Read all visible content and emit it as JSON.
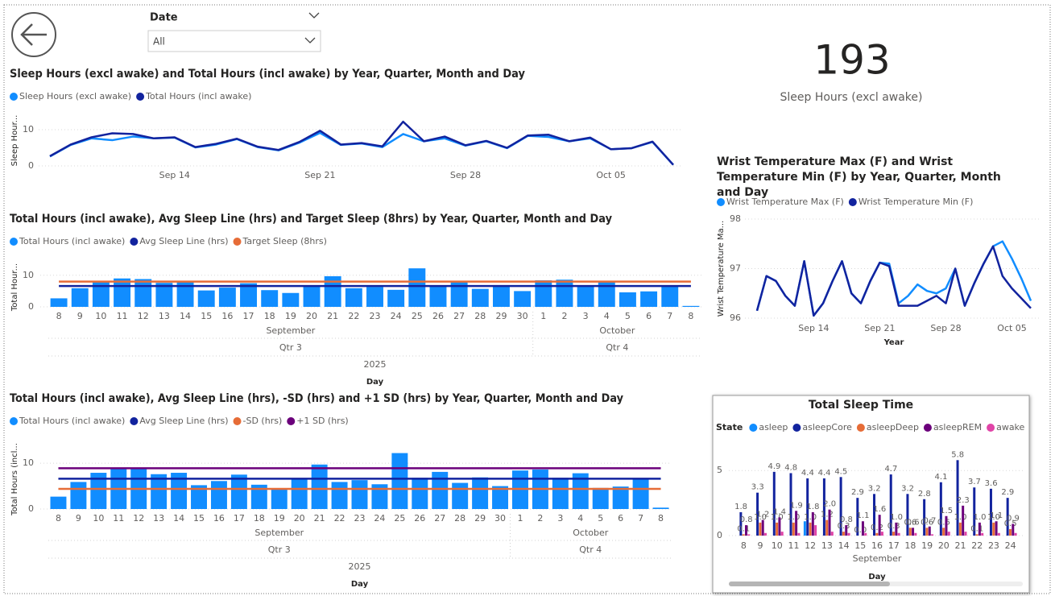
{
  "slicer": {
    "label": "Date",
    "value": "All"
  },
  "card": {
    "value": 193,
    "label": "Sleep Hours (excl awake)"
  },
  "chart_data": [
    {
      "type": "line",
      "title": "Sleep Hours (excl awake) and Total Hours (incl awake) by Year, Quarter, Month and Day",
      "y_label": "Sleep Hour...",
      "x": [
        "Sep 08",
        "Sep 09",
        "Sep 10",
        "Sep 11",
        "Sep 12",
        "Sep 13",
        "Sep 14",
        "Sep 15",
        "Sep 16",
        "Sep 17",
        "Sep 18",
        "Sep 19",
        "Sep 20",
        "Sep 21",
        "Sep 22",
        "Sep 23",
        "Sep 24",
        "Sep 25",
        "Sep 26",
        "Sep 27",
        "Sep 28",
        "Sep 29",
        "Sep 30",
        "Oct 01",
        "Oct 02",
        "Oct 03",
        "Oct 04",
        "Oct 05",
        "Oct 06",
        "Oct 07",
        "Oct 08"
      ],
      "series": [
        {
          "name": "Sleep Hours (excl awake)",
          "color": "#118DFF",
          "values": [
            2.6,
            5.8,
            7.6,
            7.1,
            8.1,
            7.6,
            7.8,
            5.1,
            5.9,
            7.4,
            5.2,
            4.3,
            6.4,
            9.1,
            5.8,
            6.2,
            5.2,
            8.8,
            6.8,
            7.6,
            5.6,
            6.8,
            4.9,
            8.3,
            8.0,
            6.8,
            7.6,
            4.6,
            4.9,
            6.6,
            0.3
          ]
        },
        {
          "name": "Total Hours (incl awake)",
          "color": "#12239E",
          "values": [
            2.7,
            5.9,
            7.9,
            9.0,
            8.8,
            7.6,
            7.9,
            5.2,
            6.1,
            7.5,
            5.3,
            4.4,
            6.6,
            9.7,
            5.9,
            6.3,
            5.4,
            12.2,
            6.8,
            8.1,
            5.7,
            6.9,
            5.0,
            8.4,
            8.6,
            6.8,
            7.8,
            4.6,
            4.9,
            6.7,
            0.3
          ]
        }
      ],
      "xticks": [
        "Sep 14",
        "Sep 21",
        "Sep 28",
        "Oct 05"
      ],
      "ylim": [
        0,
        14
      ],
      "yticks": [
        0,
        10
      ],
      "grid": true
    },
    {
      "type": "combo",
      "title": "Total Hours (incl awake), Avg Sleep Line (hrs) and Target Sleep (8hrs) by Year, Quarter, Month and Day",
      "y_label": "Total Hour...",
      "x_label": "Day",
      "categories": [
        "8",
        "9",
        "10",
        "11",
        "12",
        "13",
        "14",
        "15",
        "16",
        "17",
        "18",
        "19",
        "20",
        "21",
        "22",
        "23",
        "24",
        "25",
        "26",
        "27",
        "28",
        "29",
        "30",
        "1",
        "2",
        "3",
        "4",
        "5",
        "6",
        "7",
        "8"
      ],
      "months": [
        "September",
        "October"
      ],
      "quarters": [
        "Qtr 3",
        "Qtr 4"
      ],
      "year": "2025",
      "series": [
        {
          "name": "Total Hours (incl awake)",
          "color": "#118DFF",
          "kind": "bar",
          "values": [
            2.7,
            5.9,
            7.9,
            9.0,
            8.8,
            7.6,
            7.9,
            5.2,
            6.1,
            7.5,
            5.3,
            4.4,
            6.6,
            9.7,
            5.9,
            6.3,
            5.4,
            12.2,
            6.8,
            8.1,
            5.7,
            6.9,
            5.0,
            8.4,
            8.6,
            6.8,
            7.8,
            4.6,
            4.9,
            6.7,
            0.3
          ]
        },
        {
          "name": "Avg Sleep Line (hrs)",
          "color": "#12239E",
          "kind": "line",
          "values": [
            6.6,
            6.6,
            6.6,
            6.6,
            6.6,
            6.6,
            6.6,
            6.6,
            6.6,
            6.6,
            6.6,
            6.6,
            6.6,
            6.6,
            6.6,
            6.6,
            6.6,
            6.6,
            6.6,
            6.6,
            6.6,
            6.6,
            6.6,
            6.6,
            6.6,
            6.6,
            6.6,
            6.6,
            6.6,
            6.6,
            6.6
          ]
        },
        {
          "name": "Target Sleep (8hrs)",
          "color": "#E66C37",
          "kind": "line",
          "values": [
            8,
            8,
            8,
            8,
            8,
            8,
            8,
            8,
            8,
            8,
            8,
            8,
            8,
            8,
            8,
            8,
            8,
            8,
            8,
            8,
            8,
            8,
            8,
            8,
            8,
            8,
            8,
            8,
            8,
            8,
            8
          ]
        }
      ],
      "ylim": [
        0,
        12.5
      ],
      "yticks": [
        0,
        10
      ],
      "grid": true
    },
    {
      "type": "combo",
      "title": "Total Hours (incl awake), Avg Sleep Line (hrs), -SD (hrs) and +1 SD (hrs) by Year, Quarter, Month and Day",
      "y_label": "Total Hours (incl...",
      "x_label": "Day",
      "categories": [
        "8",
        "9",
        "10",
        "11",
        "12",
        "13",
        "14",
        "15",
        "16",
        "17",
        "18",
        "19",
        "20",
        "21",
        "22",
        "23",
        "24",
        "25",
        "26",
        "27",
        "28",
        "29",
        "30",
        "1",
        "2",
        "3",
        "4",
        "5",
        "6",
        "7",
        "8"
      ],
      "months": [
        "September",
        "October"
      ],
      "quarters": [
        "Qtr 3",
        "Qtr 4"
      ],
      "year": "2025",
      "series": [
        {
          "name": "Total Hours (incl awake)",
          "color": "#118DFF",
          "kind": "bar",
          "values": [
            2.7,
            5.9,
            7.9,
            9.0,
            8.8,
            7.6,
            7.9,
            5.2,
            6.1,
            7.5,
            5.3,
            4.4,
            6.6,
            9.7,
            5.9,
            6.3,
            5.4,
            12.2,
            6.8,
            8.1,
            5.7,
            6.9,
            5.0,
            8.4,
            8.6,
            6.8,
            7.8,
            4.6,
            4.9,
            6.7,
            0.3
          ]
        },
        {
          "name": "Avg Sleep Line (hrs)",
          "color": "#12239E",
          "kind": "line",
          "values": [
            6.6,
            6.6,
            6.6,
            6.6,
            6.6,
            6.6,
            6.6,
            6.6,
            6.6,
            6.6,
            6.6,
            6.6,
            6.6,
            6.6,
            6.6,
            6.6,
            6.6,
            6.6,
            6.6,
            6.6,
            6.6,
            6.6,
            6.6,
            6.6,
            6.6,
            6.6,
            6.6,
            6.6,
            6.6,
            6.6,
            6.6
          ]
        },
        {
          "name": "-SD (hrs)",
          "color": "#E66C37",
          "kind": "line",
          "values": [
            4.4,
            4.4,
            4.4,
            4.4,
            4.4,
            4.4,
            4.4,
            4.4,
            4.4,
            4.4,
            4.4,
            4.4,
            4.4,
            4.4,
            4.4,
            4.4,
            4.4,
            4.4,
            4.4,
            4.4,
            4.4,
            4.4,
            4.4,
            4.4,
            4.4,
            4.4,
            4.4,
            4.4,
            4.4,
            4.4,
            4.4
          ]
        },
        {
          "name": "+1 SD (hrs)",
          "color": "#6B007B",
          "kind": "line",
          "values": [
            8.9,
            8.9,
            8.9,
            8.9,
            8.9,
            8.9,
            8.9,
            8.9,
            8.9,
            8.9,
            8.9,
            8.9,
            8.9,
            8.9,
            8.9,
            8.9,
            8.9,
            8.9,
            8.9,
            8.9,
            8.9,
            8.9,
            8.9,
            8.9,
            8.9,
            8.9,
            8.9,
            8.9,
            8.9,
            8.9,
            8.9
          ]
        }
      ],
      "ylim": [
        0,
        13
      ],
      "yticks": [
        0,
        10
      ],
      "grid": true
    },
    {
      "type": "line",
      "title": "Wrist Temperature Max (F) and Wrist Temperature Min (F) by Year, Quarter, Month and Day",
      "y_label": "Wrist Temperature Ma...",
      "x_label": "Year",
      "x": [
        "Sep 08",
        "Sep 09",
        "Sep 10",
        "Sep 11",
        "Sep 12",
        "Sep 13",
        "Sep 14",
        "Sep 15",
        "Sep 16",
        "Sep 17",
        "Sep 18",
        "Sep 19",
        "Sep 20",
        "Sep 21",
        "Sep 22",
        "Sep 23",
        "Sep 24",
        "Sep 25",
        "Sep 26",
        "Sep 27",
        "Sep 28",
        "Sep 29",
        "Sep 30",
        "Oct 01",
        "Oct 02",
        "Oct 03",
        "Oct 04",
        "Oct 05",
        "Oct 06",
        "Oct 07"
      ],
      "series": [
        {
          "name": "Wrist Temperature Max (F)",
          "color": "#118DFF",
          "values": [
            96.15,
            96.85,
            96.75,
            96.45,
            96.25,
            97.15,
            96.05,
            96.3,
            96.75,
            97.15,
            96.5,
            96.3,
            96.75,
            97.12,
            97.1,
            96.3,
            96.45,
            96.68,
            96.55,
            96.5,
            96.6,
            97.0,
            96.25,
            96.7,
            97.1,
            97.45,
            97.55,
            97.2,
            96.8,
            96.35
          ]
        },
        {
          "name": "Wrist Temperature Min (F)",
          "color": "#12239E",
          "values": [
            96.15,
            96.85,
            96.75,
            96.45,
            96.25,
            97.15,
            96.05,
            96.3,
            96.75,
            97.15,
            96.5,
            96.3,
            96.75,
            97.12,
            97.05,
            96.25,
            96.25,
            96.25,
            96.35,
            96.45,
            96.3,
            97.0,
            96.25,
            96.7,
            97.1,
            97.45,
            96.85,
            96.6,
            96.4,
            96.2
          ]
        }
      ],
      "xticks": [
        "Sep 14",
        "Sep 21",
        "Sep 28",
        "Oct 05"
      ],
      "ylim": [
        96,
        98
      ],
      "yticks": [
        96,
        97,
        98
      ],
      "grid": true
    },
    {
      "type": "grouped_bar",
      "title": "Total Sleep Time",
      "legend_title": "State",
      "x_label": "Day",
      "categories": [
        "8",
        "9",
        "10",
        "11",
        "12",
        "13",
        "14",
        "15",
        "16",
        "17",
        "18",
        "19",
        "20",
        "21",
        "22",
        "23",
        "24"
      ],
      "months": [
        "September"
      ],
      "series": [
        {
          "name": "asleep",
          "color": "#118DFF",
          "values": [
            0,
            0,
            0,
            0,
            1.1,
            0,
            0,
            0,
            0,
            0,
            0,
            0,
            0,
            0,
            0,
            0,
            0
          ]
        },
        {
          "name": "asleepCore",
          "color": "#12239E",
          "values": [
            1.8,
            3.3,
            4.9,
            4.8,
            4.4,
            4.4,
            4.5,
            2.9,
            3.2,
            4.7,
            3.2,
            2.8,
            4.1,
            5.8,
            3.7,
            3.6,
            2.9
          ],
          "value_labels": [
            "1.8",
            "3.3",
            "4.9",
            "4.8",
            "4.4",
            "4.4",
            "4.5",
            "2.9",
            "3.2",
            "4.7",
            "3.2",
            "2.8",
            "4.1",
            "5.8",
            "3.7",
            "3.6",
            "2.9"
          ]
        },
        {
          "name": "asleepDeep",
          "color": "#E66C37",
          "values": [
            0.1,
            1.0,
            1.0,
            1.0,
            1.0,
            1.2,
            0.3,
            0.0,
            0.2,
            0.3,
            0.6,
            0.6,
            0.6,
            1.0,
            0.1,
            1.0,
            0.5
          ],
          "value_labels": [
            "0.1",
            "1.0",
            "1.0",
            "1.0",
            "1.0",
            "1.2",
            "0.3",
            "0.0",
            "0.2",
            "0.3",
            "0.6",
            "0.6",
            "0.6",
            "1.0",
            "0.1",
            "1.0",
            "0.5"
          ]
        },
        {
          "name": "asleepREM",
          "color": "#6B007B",
          "values": [
            0.8,
            1.2,
            1.4,
            1.9,
            1.8,
            2.0,
            0.8,
            1.1,
            1.6,
            1.0,
            0.6,
            0.7,
            1.5,
            2.3,
            1.0,
            1.1,
            0.9
          ],
          "value_labels": [
            "0.8",
            "1.2",
            "1.4",
            "1.9",
            "1.8",
            "2.0",
            "0.8",
            "1.1",
            "1.6",
            "1.0",
            "0.6",
            "0.7",
            "1.5",
            "2.3",
            "1.0",
            "1.1",
            "0.9"
          ]
        },
        {
          "name": "awake",
          "color": "#E044A7",
          "values": [
            0.1,
            0.2,
            0.3,
            0.2,
            0.8,
            0.3,
            0.2,
            0.2,
            0.3,
            0.2,
            0.2,
            0.1,
            0.3,
            0.3,
            0.2,
            0.2,
            0.2
          ]
        }
      ],
      "ylim": [
        0,
        6.5
      ],
      "yticks": [
        0,
        5
      ],
      "grid": true
    }
  ]
}
